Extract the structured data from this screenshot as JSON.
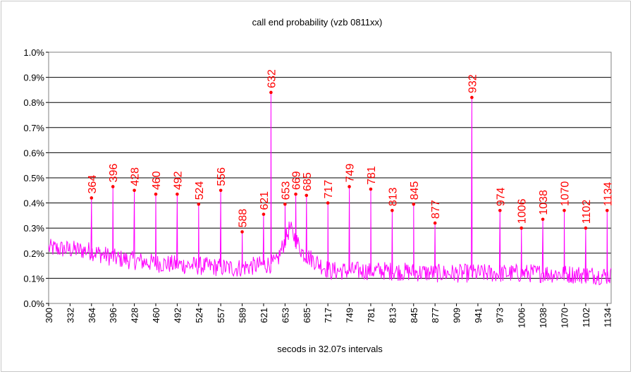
{
  "chart_data": {
    "type": "line",
    "title": "call end probability (vzb 0811xx)",
    "xlabel": "secods in 32.07s intervals",
    "ylabel": "",
    "ylim": [
      0,
      0.01
    ],
    "yticks": [
      "0.0%",
      "0.1%",
      "0.2%",
      "0.3%",
      "0.4%",
      "0.5%",
      "0.6%",
      "0.7%",
      "0.8%",
      "0.9%",
      "1.0%"
    ],
    "xlim": [
      300,
      1140
    ],
    "xticks": [
      300,
      332,
      364,
      396,
      428,
      460,
      492,
      524,
      557,
      589,
      621,
      653,
      685,
      717,
      749,
      781,
      813,
      845,
      877,
      909,
      941,
      973,
      1006,
      1038,
      1070,
      1102,
      1134
    ],
    "grid": "horizontal",
    "legend": "none",
    "series_color": "#ff00ff",
    "marker_color": "#ff0000",
    "label_color": "#ff0000",
    "peaks": [
      {
        "x": 364,
        "y": 0.0042,
        "label": "364"
      },
      {
        "x": 396,
        "y": 0.00465,
        "label": "396"
      },
      {
        "x": 428,
        "y": 0.0045,
        "label": "428"
      },
      {
        "x": 460,
        "y": 0.00435,
        "label": "460"
      },
      {
        "x": 492,
        "y": 0.00435,
        "label": "492"
      },
      {
        "x": 524,
        "y": 0.00395,
        "label": "524"
      },
      {
        "x": 557,
        "y": 0.0045,
        "label": "556"
      },
      {
        "x": 589,
        "y": 0.00285,
        "label": "588"
      },
      {
        "x": 621,
        "y": 0.00355,
        "label": "621"
      },
      {
        "x": 632,
        "y": 0.0084,
        "label": "632"
      },
      {
        "x": 653,
        "y": 0.00395,
        "label": "653"
      },
      {
        "x": 669,
        "y": 0.00435,
        "label": "669"
      },
      {
        "x": 685,
        "y": 0.0043,
        "label": "685"
      },
      {
        "x": 717,
        "y": 0.004,
        "label": "717"
      },
      {
        "x": 749,
        "y": 0.00465,
        "label": "749"
      },
      {
        "x": 781,
        "y": 0.00455,
        "label": "781"
      },
      {
        "x": 813,
        "y": 0.0037,
        "label": "813"
      },
      {
        "x": 845,
        "y": 0.00395,
        "label": "845"
      },
      {
        "x": 877,
        "y": 0.0032,
        "label": "877"
      },
      {
        "x": 932,
        "y": 0.0082,
        "label": "932"
      },
      {
        "x": 974,
        "y": 0.0037,
        "label": "974"
      },
      {
        "x": 1006,
        "y": 0.003,
        "label": "1006"
      },
      {
        "x": 1038,
        "y": 0.00335,
        "label": "1038"
      },
      {
        "x": 1070,
        "y": 0.0037,
        "label": "1070"
      },
      {
        "x": 1102,
        "y": 0.003,
        "label": "1102"
      },
      {
        "x": 1134,
        "y": 0.0037,
        "label": "1134"
      }
    ],
    "baseline": [
      {
        "x": 300,
        "y": 0.0022
      },
      {
        "x": 360,
        "y": 0.0021
      },
      {
        "x": 400,
        "y": 0.0018
      },
      {
        "x": 460,
        "y": 0.0016
      },
      {
        "x": 520,
        "y": 0.0015
      },
      {
        "x": 580,
        "y": 0.0014
      },
      {
        "x": 640,
        "y": 0.0016
      },
      {
        "x": 660,
        "y": 0.003
      },
      {
        "x": 680,
        "y": 0.002
      },
      {
        "x": 720,
        "y": 0.0013
      },
      {
        "x": 800,
        "y": 0.0013
      },
      {
        "x": 880,
        "y": 0.0012
      },
      {
        "x": 960,
        "y": 0.0012
      },
      {
        "x": 1040,
        "y": 0.0012
      },
      {
        "x": 1140,
        "y": 0.0011
      }
    ]
  }
}
